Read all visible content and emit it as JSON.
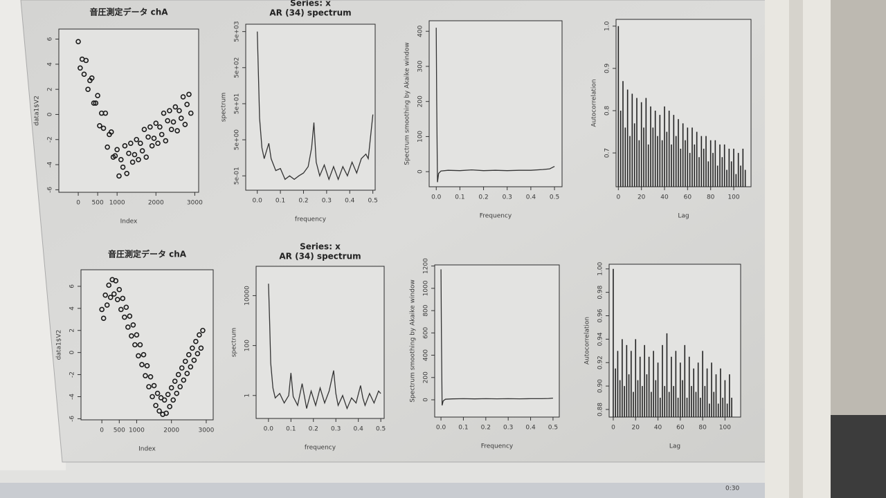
{
  "chart_data": [
    {
      "type": "scatter",
      "title": "音圧測定データ chA",
      "xlabel": "Index",
      "ylabel": "data1$V2",
      "color": "#1a1a1a",
      "xlim": [
        -500,
        3100
      ],
      "ylim": [
        -6.2,
        6.8
      ],
      "xticks": [
        0,
        500,
        1000,
        2000,
        3000
      ],
      "yticks": [
        -6,
        -4,
        -2,
        0,
        2,
        4,
        6
      ],
      "x": [
        0,
        50,
        100,
        150,
        200,
        250,
        300,
        350,
        400,
        450,
        500,
        550,
        600,
        650,
        700,
        750,
        800,
        850,
        900,
        950,
        1000,
        1050,
        1100,
        1150,
        1200,
        1250,
        1300,
        1350,
        1400,
        1450,
        1500,
        1550,
        1600,
        1650,
        1700,
        1750,
        1800,
        1850,
        1900,
        1950,
        2000,
        2050,
        2100,
        2150,
        2200,
        2250,
        2300,
        2350,
        2400,
        2450,
        2500,
        2550,
        2600,
        2650,
        2700,
        2750,
        2800,
        2850,
        2900
      ],
      "values": [
        5.8,
        3.7,
        4.4,
        3.2,
        4.3,
        2.0,
        2.7,
        2.9,
        0.9,
        0.9,
        1.5,
        -0.9,
        0.1,
        -1.1,
        0.1,
        -2.6,
        -1.6,
        -1.4,
        -3.4,
        -3.3,
        -2.8,
        -4.9,
        -3.6,
        -4.2,
        -2.5,
        -4.7,
        -3.1,
        -2.3,
        -3.8,
        -3.2,
        -2.0,
        -3.6,
        -2.3,
        -2.9,
        -1.2,
        -3.4,
        -1.8,
        -1.0,
        -2.5,
        -1.9,
        -0.7,
        -2.3,
        -1.0,
        -1.6,
        0.1,
        -2.1,
        -0.5,
        0.3,
        -1.2,
        -0.6,
        0.6,
        -1.3,
        0.3,
        -0.3,
        1.4,
        -0.8,
        0.8,
        1.6,
        0.1
      ]
    },
    {
      "type": "line",
      "title": "Series: x",
      "subtitle": "AR (34) spectrum",
      "xlabel": "frequency",
      "ylabel": "spectrum",
      "color": "#333333",
      "ylog": true,
      "xlim": [
        -0.05,
        0.51
      ],
      "ylim": [
        0.2,
        8000
      ],
      "xticks": [
        {
          "value": 0,
          "label": "0.0"
        },
        0.1,
        0.2,
        0.3,
        0.4,
        0.5
      ],
      "yticks": [
        {
          "value": 0.5,
          "label": "5e-01"
        },
        {
          "value": 5,
          "label": "5e+00"
        },
        {
          "value": 50,
          "label": "5e+01"
        },
        {
          "value": 500,
          "label": "5e+02"
        },
        {
          "value": 5000,
          "label": "5e+03"
        }
      ],
      "x": [
        0,
        0.005,
        0.01,
        0.02,
        0.03,
        0.04,
        0.05,
        0.06,
        0.08,
        0.1,
        0.12,
        0.14,
        0.16,
        0.18,
        0.2,
        0.22,
        0.235,
        0.245,
        0.255,
        0.27,
        0.29,
        0.31,
        0.33,
        0.35,
        0.37,
        0.39,
        0.41,
        0.43,
        0.45,
        0.47,
        0.48,
        0.49,
        0.5
      ],
      "values": [
        5000,
        300,
        20,
        3,
        1.5,
        2.5,
        4,
        1.5,
        0.7,
        0.8,
        0.4,
        0.5,
        0.4,
        0.5,
        0.6,
        0.9,
        3,
        15,
        1.2,
        0.5,
        1,
        0.4,
        0.9,
        0.4,
        0.9,
        0.5,
        1.2,
        0.6,
        1.5,
        2,
        1.5,
        6,
        25
      ]
    },
    {
      "type": "line",
      "xlabel": "Frequency",
      "ylabel": "Spectrum smoothing by Akaike window",
      "color": "#333333",
      "xlim": [
        -0.03,
        0.532
      ],
      "ylim": [
        -43,
        430
      ],
      "xticks": [
        {
          "value": 0,
          "label": "0.0"
        },
        0.1,
        0.2,
        0.3,
        0.4,
        0.5
      ],
      "yticks": [
        0,
        100,
        200,
        300,
        400
      ],
      "x": [
        0,
        0.002,
        0.005,
        0.01,
        0.02,
        0.05,
        0.1,
        0.15,
        0.2,
        0.25,
        0.3,
        0.35,
        0.4,
        0.45,
        0.48,
        0.5
      ],
      "values": [
        410,
        200,
        -30,
        -5,
        2,
        4,
        3,
        5,
        3,
        4,
        3,
        4,
        4,
        6,
        8,
        15
      ]
    },
    {
      "type": "bar",
      "xlabel": "Lag",
      "ylabel": "Autocorrelation",
      "color": "#222222",
      "xlim": [
        -2,
        115
      ],
      "ylim": [
        0.62,
        1.016
      ],
      "xticks": [
        0,
        20,
        40,
        60,
        80,
        100
      ],
      "yticks": [
        0.7,
        0.8,
        0.9,
        {
          "value": 1,
          "label": "1.0"
        }
      ],
      "x": [
        0,
        2,
        4,
        6,
        8,
        10,
        12,
        14,
        16,
        18,
        20,
        22,
        24,
        26,
        28,
        30,
        32,
        34,
        36,
        38,
        40,
        42,
        44,
        46,
        48,
        50,
        52,
        54,
        56,
        58,
        60,
        62,
        64,
        66,
        68,
        70,
        72,
        74,
        76,
        78,
        80,
        82,
        84,
        86,
        88,
        90,
        92,
        94,
        96,
        98,
        100,
        102,
        104,
        106,
        108,
        110
      ],
      "values": [
        1.0,
        0.8,
        0.87,
        0.76,
        0.85,
        0.74,
        0.84,
        0.77,
        0.83,
        0.73,
        0.82,
        0.76,
        0.83,
        0.72,
        0.81,
        0.76,
        0.8,
        0.74,
        0.79,
        0.73,
        0.81,
        0.75,
        0.8,
        0.72,
        0.79,
        0.74,
        0.78,
        0.71,
        0.77,
        0.73,
        0.76,
        0.7,
        0.76,
        0.72,
        0.75,
        0.69,
        0.74,
        0.71,
        0.74,
        0.68,
        0.73,
        0.7,
        0.73,
        0.67,
        0.72,
        0.69,
        0.72,
        0.66,
        0.71,
        0.68,
        0.71,
        0.65,
        0.7,
        0.67,
        0.71,
        0.66
      ]
    },
    {
      "type": "scatter",
      "title": "音圧測定データ chA",
      "xlabel": "Index",
      "ylabel": "data1$V2",
      "color": "#1a1a1a",
      "xlim": [
        -600,
        3200
      ],
      "ylim": [
        -6.1,
        7.5
      ],
      "xticks": [
        0,
        500,
        1000,
        2000,
        3000
      ],
      "yticks": [
        -6,
        -4,
        -2,
        0,
        2,
        4,
        6
      ],
      "x": [
        0,
        50,
        100,
        150,
        200,
        250,
        300,
        350,
        400,
        450,
        500,
        550,
        600,
        650,
        700,
        750,
        800,
        850,
        900,
        950,
        1000,
        1050,
        1100,
        1150,
        1200,
        1250,
        1300,
        1350,
        1400,
        1450,
        1500,
        1550,
        1600,
        1650,
        1700,
        1750,
        1800,
        1850,
        1900,
        1950,
        2000,
        2050,
        2100,
        2150,
        2200,
        2250,
        2300,
        2350,
        2400,
        2450,
        2500,
        2550,
        2600,
        2650,
        2700,
        2750,
        2800,
        2850,
        2900
      ],
      "values": [
        3.9,
        3.1,
        5.2,
        4.3,
        6.1,
        5.0,
        6.6,
        5.3,
        6.5,
        4.8,
        5.7,
        3.9,
        4.9,
        3.2,
        4.1,
        2.3,
        3.3,
        1.5,
        2.5,
        0.7,
        1.6,
        -0.3,
        0.7,
        -1.1,
        -0.2,
        -2.1,
        -1.2,
        -3.1,
        -2.2,
        -4.0,
        -3.0,
        -4.8,
        -3.7,
        -5.3,
        -4.1,
        -5.6,
        -4.3,
        -5.5,
        -3.8,
        -4.9,
        -3.2,
        -4.3,
        -2.6,
        -3.7,
        -2.0,
        -3.1,
        -1.4,
        -2.5,
        -0.8,
        -1.9,
        -0.2,
        -1.3,
        0.4,
        -0.7,
        1.0,
        -0.1,
        1.6,
        0.4,
        2.0
      ]
    },
    {
      "type": "line",
      "title": "Series: x",
      "subtitle": "AR (34) spectrum",
      "xlabel": "frequency",
      "ylabel": "spectrum",
      "color": "#333333",
      "ylog": true,
      "xlim": [
        -0.055,
        0.515
      ],
      "ylim": [
        0.12,
        150000
      ],
      "xticks": [
        {
          "value": 0,
          "label": "0.0"
        },
        0.1,
        0.2,
        0.3,
        0.4,
        0.5
      ],
      "yticks": [
        1,
        100,
        10000
      ],
      "x": [
        0,
        0.005,
        0.01,
        0.02,
        0.03,
        0.05,
        0.07,
        0.09,
        0.1,
        0.11,
        0.13,
        0.15,
        0.17,
        0.19,
        0.21,
        0.23,
        0.25,
        0.27,
        0.29,
        0.3,
        0.31,
        0.33,
        0.35,
        0.37,
        0.39,
        0.41,
        0.42,
        0.43,
        0.45,
        0.47,
        0.49,
        0.5
      ],
      "values": [
        30000,
        1000,
        20,
        2,
        0.8,
        1.2,
        0.5,
        1,
        8,
        0.9,
        0.4,
        3,
        0.3,
        1.5,
        0.4,
        2,
        0.5,
        1.5,
        10,
        1.2,
        0.4,
        1,
        0.3,
        0.8,
        0.5,
        2.5,
        0.8,
        0.4,
        1.2,
        0.5,
        1.5,
        1.2
      ]
    },
    {
      "type": "line",
      "xlabel": "Frequency",
      "ylabel": "Spectrum smoothing by Akaike window",
      "color": "#333333",
      "xlim": [
        -0.028,
        0.528
      ],
      "ylim": [
        -155,
        1210
      ],
      "xticks": [
        {
          "value": 0,
          "label": "0.0"
        },
        0.1,
        0.2,
        0.3,
        0.4,
        0.5
      ],
      "yticks": [
        0,
        200,
        400,
        600,
        800,
        1000,
        1200
      ],
      "x": [
        0,
        0.002,
        0.005,
        0.01,
        0.02,
        0.05,
        0.1,
        0.15,
        0.2,
        0.25,
        0.3,
        0.35,
        0.4,
        0.45,
        0.48,
        0.5
      ],
      "values": [
        1170,
        600,
        -50,
        -10,
        5,
        8,
        10,
        8,
        10,
        9,
        10,
        9,
        10,
        10,
        12,
        15
      ]
    },
    {
      "type": "bar",
      "xlabel": "Lag",
      "ylabel": "Autocorrelation",
      "color": "#222222",
      "xlim": [
        -3.7,
        114
      ],
      "ylim": [
        0.8735,
        1.004
      ],
      "xticks": [
        0,
        20,
        40,
        60,
        80,
        100
      ],
      "yticks": [
        0.88,
        {
          "value": 0.9,
          "label": "0.90"
        },
        0.92,
        0.94,
        0.96,
        0.98,
        {
          "value": 1,
          "label": "1.00"
        }
      ],
      "x": [
        0,
        2,
        4,
        6,
        8,
        10,
        12,
        14,
        16,
        18,
        20,
        22,
        24,
        26,
        28,
        30,
        32,
        34,
        36,
        38,
        40,
        42,
        44,
        46,
        48,
        50,
        52,
        54,
        56,
        58,
        60,
        62,
        64,
        66,
        68,
        70,
        72,
        74,
        76,
        78,
        80,
        82,
        84,
        86,
        88,
        90,
        92,
        94,
        96,
        98,
        100,
        102,
        104,
        106
      ],
      "values": [
        1.0,
        0.915,
        0.93,
        0.905,
        0.94,
        0.9,
        0.935,
        0.91,
        0.93,
        0.895,
        0.94,
        0.905,
        0.925,
        0.9,
        0.935,
        0.91,
        0.925,
        0.895,
        0.93,
        0.905,
        0.92,
        0.89,
        0.935,
        0.9,
        0.945,
        0.895,
        0.925,
        0.9,
        0.93,
        0.89,
        0.92,
        0.905,
        0.935,
        0.89,
        0.925,
        0.9,
        0.915,
        0.895,
        0.92,
        0.89,
        0.93,
        0.9,
        0.915,
        0.885,
        0.92,
        0.895,
        0.91,
        0.885,
        0.915,
        0.89,
        0.905,
        0.885,
        0.91,
        0.89
      ]
    }
  ],
  "screen": {
    "clock": "0:30"
  }
}
